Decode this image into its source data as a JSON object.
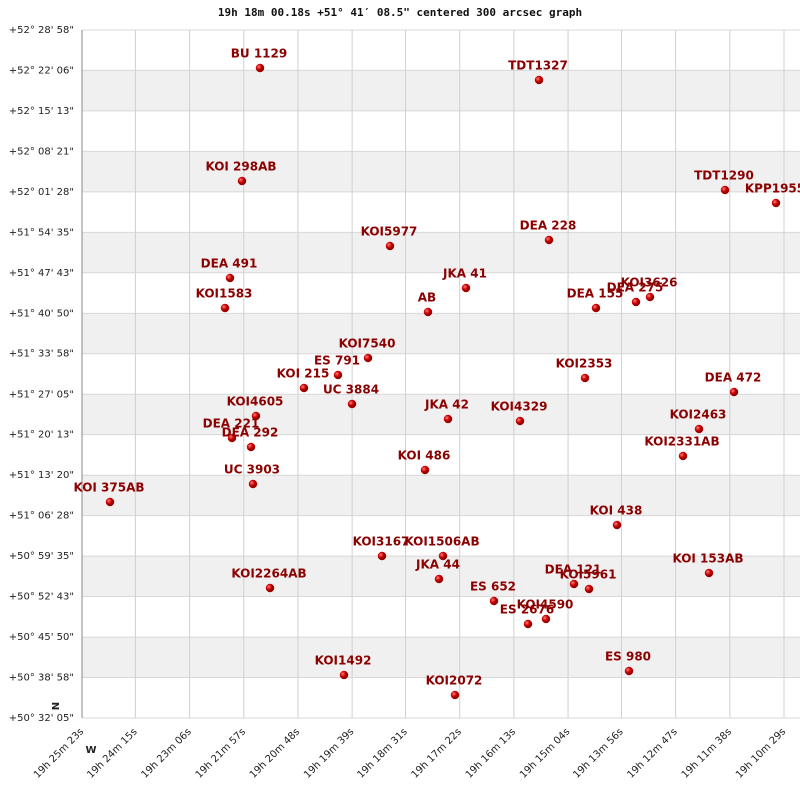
{
  "chart_data": {
    "type": "scatter",
    "title": "19h 18m 00.18s +51° 41′ 08.5\" centered 300 arcsec graph",
    "color": "#c00000",
    "grid": true,
    "annotations": [
      "N",
      "W"
    ],
    "xlim": [
      19.42306,
      19.16906
    ],
    "ylim": [
      50.53472,
      52.48278
    ],
    "xticks": [
      {
        "value": 19.42306,
        "label": "19h 25m 23s"
      },
      {
        "value": 19.40417,
        "label": "19h 24m 15s"
      },
      {
        "value": 19.385,
        "label": "19h 23m 06s"
      },
      {
        "value": 19.36583,
        "label": "19h 21m 57s"
      },
      {
        "value": 19.34667,
        "label": "19h 20m 48s"
      },
      {
        "value": 19.3275,
        "label": "19h 19m 39s"
      },
      {
        "value": 19.30861,
        "label": "19h 18m 31s"
      },
      {
        "value": 19.28944,
        "label": "19h 17m 22s"
      },
      {
        "value": 19.27028,
        "label": "19h 16m 13s"
      },
      {
        "value": 19.25111,
        "label": "19h 15m 04s"
      },
      {
        "value": 19.23222,
        "label": "19h 13m 56s"
      },
      {
        "value": 19.21306,
        "label": "19h 12m 47s"
      },
      {
        "value": 19.19389,
        "label": "19h 11m 38s"
      },
      {
        "value": 19.17472,
        "label": "19h 10m 29s"
      }
    ],
    "yticks": [
      {
        "value": 50.53472,
        "label": "+50° 32' 05\""
      },
      {
        "value": 50.64944,
        "label": "+50° 38' 58\""
      },
      {
        "value": 50.76389,
        "label": "+50° 45' 50\""
      },
      {
        "value": 50.87861,
        "label": "+50° 52' 43\""
      },
      {
        "value": 50.99306,
        "label": "+50° 59' 35\""
      },
      {
        "value": 51.10778,
        "label": "+51° 06' 28\""
      },
      {
        "value": 51.22222,
        "label": "+51° 13' 20\""
      },
      {
        "value": 51.33694,
        "label": "+51° 20' 13\""
      },
      {
        "value": 51.45139,
        "label": "+51° 27' 05\""
      },
      {
        "value": 51.56611,
        "label": "+51° 33' 58\""
      },
      {
        "value": 51.68056,
        "label": "+51° 40' 50\""
      },
      {
        "value": 51.79528,
        "label": "+51° 47' 43\""
      },
      {
        "value": 51.90972,
        "label": "+51° 54' 35\""
      },
      {
        "value": 52.02444,
        "label": "+52° 01' 28\""
      },
      {
        "value": 52.13917,
        "label": "+52° 08' 21\""
      },
      {
        "value": 52.25361,
        "label": "+52° 15' 13\""
      },
      {
        "value": 52.36833,
        "label": "+52° 22' 06\""
      },
      {
        "value": 52.48278,
        "label": "+52° 28' 58\""
      }
    ],
    "labels": [
      "BU 1129",
      "TDT1327",
      "KOI 298AB",
      "TDT1290",
      "KPP1955",
      "DEA 228",
      "KOI5977",
      "DEA 491",
      "JKA  41",
      "KOI1583",
      "AB",
      "DEA 155",
      "DEA 275",
      "KOI3626",
      "KOI7540",
      "ES  791",
      "KOI 215",
      "UC 3884",
      "KOI2353",
      "DEA 472",
      "KOI4605",
      "JKA  42",
      "KOI4329",
      "DEA 221",
      "DEA 292",
      "KOI2463",
      "KOI2331AB",
      "KOI 486",
      "UC 3903",
      "KOI 375AB",
      "KOI 438",
      "KOI3167",
      "KOI1506AB",
      "JKA  44",
      "DEA 121",
      "KOI5961",
      "KOI 153AB",
      "KOI2264AB",
      "ES  652",
      "ES 2676",
      "KOI4590",
      "ES  980",
      "KOI1492",
      "KOI2072"
    ],
    "x": [
      19.36009,
      19.26139,
      19.36646,
      19.19559,
      19.17755,
      19.25785,
      19.3141,
      19.3707,
      19.28722,
      19.37247,
      19.30066,
      19.24123,
      19.22708,
      19.22212,
      19.32188,
      19.3325,
      19.34453,
      19.32754,
      19.24512,
      19.19241,
      19.36151,
      19.29358,
      19.26811,
      19.37,
      19.36327,
      19.20479,
      19.21045,
      19.30172,
      19.36257,
      19.41315,
      19.2338,
      19.31693,
      19.29535,
      19.29677,
      19.24901,
      19.2437,
      19.20125,
      19.35655,
      19.27731,
      19.26528,
      19.25892,
      19.22955,
      19.33037,
      19.29111
    ],
    "values": [
      52.3752,
      52.34122,
      52.05524,
      52.02975,
      51.99294,
      51.88818,
      51.87119,
      51.78058,
      51.75227,
      51.69564,
      51.68431,
      51.69564,
      51.71262,
      51.72678,
      51.55406,
      51.50592,
      51.46912,
      51.42381,
      51.49743,
      51.45779,
      51.38983,
      51.38134,
      51.37568,
      51.32754,
      51.30206,
      51.35302,
      51.27657,
      51.23693,
      51.19729,
      51.14632,
      51.0812,
      50.99342,
      50.99342,
      50.9283,
      50.91414,
      50.89998,
      50.94529,
      50.90282,
      50.86601,
      50.80088,
      50.81504,
      50.6678,
      50.65647,
      50.59984
    ]
  }
}
